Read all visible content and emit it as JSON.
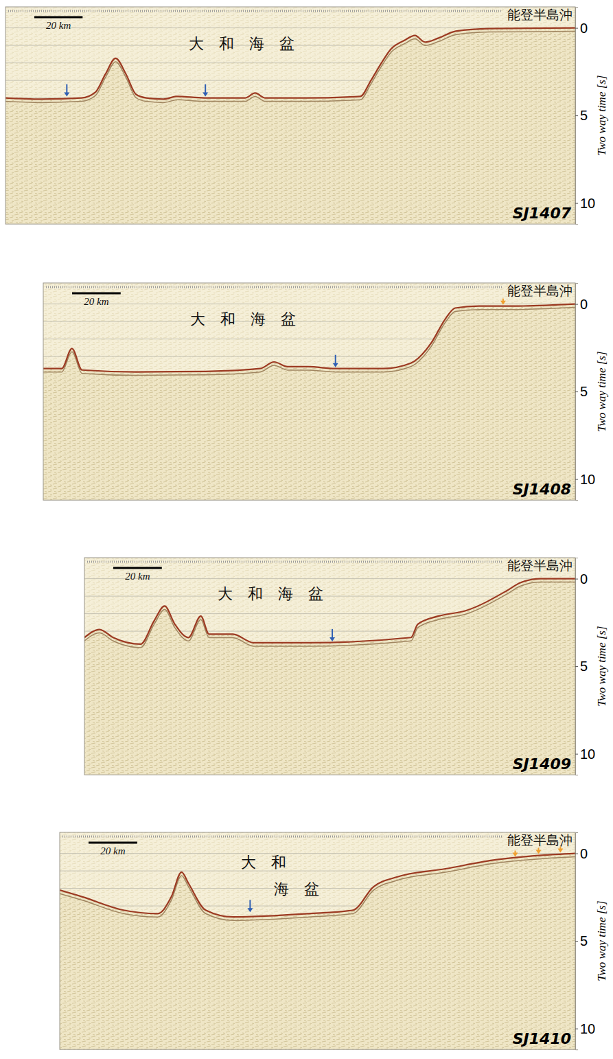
{
  "chart_data": [
    {
      "type": "line",
      "title": "SJ1407",
      "end_label": "能登半島沖",
      "ylabel": "Two way time [s]",
      "annotations": [
        {
          "text": "大　和　海　盆",
          "x": 97.7,
          "y": 0.97
        }
      ],
      "scale_bar": {
        "value": 20,
        "label": "20 km"
      },
      "x": [
        0,
        14.6,
        31.5,
        37.2,
        41.4,
        45.6,
        49.9,
        54.1,
        58.3,
        65.4,
        71,
        82.3,
        99.2,
        103.4,
        107.6,
        124.5,
        147,
        151.3,
        155.5,
        159.7,
        165.4,
        169.6,
        173.8,
        179.4,
        186.5,
        200.6,
        236
      ],
      "values": [
        4.0,
        4.07,
        4.0,
        3.68,
        2.64,
        1.74,
        2.64,
        3.8,
        4.0,
        4.07,
        3.91,
        4.0,
        4.0,
        3.72,
        4.0,
        4.0,
        3.91,
        3.02,
        2.05,
        1.2,
        0.7,
        0.43,
        0.81,
        0.58,
        0.19,
        0.04,
        0.0
      ],
      "color": "#9c3a22",
      "arrows": [
        {
          "x": 25.4,
          "y": 4.0,
          "color": "#2f5fb3"
        },
        {
          "x": 82.8,
          "y": 4.0,
          "color": "#2f5fb3"
        }
      ],
      "xlim": [
        0,
        236
      ],
      "ylim": [
        -1.2,
        11.2
      ],
      "yticks": [
        0,
        5,
        10
      ],
      "ygrid": [
        0,
        1,
        2,
        3,
        4,
        5,
        6,
        7,
        8,
        9,
        10,
        11
      ],
      "grid": true,
      "tick_labels": "y"
    },
    {
      "type": "line",
      "title": "SJ1408",
      "end_label": "能登半島沖",
      "ylabel": "Two way time [s]",
      "annotations": [
        {
          "text": "大　和　海　盆",
          "x": 82.3,
          "y": 0.92
        }
      ],
      "scale_bar": {
        "value": 20,
        "label": "20 km"
      },
      "x": [
        0,
        7.6,
        11.8,
        16,
        38.3,
        66.8,
        89.3,
        95,
        100.6,
        109,
        120.3,
        140,
        151.3,
        159.7,
        165.4,
        169.6,
        179.4,
        193.5,
        219
      ],
      "values": [
        3.69,
        3.69,
        2.54,
        3.77,
        3.88,
        3.85,
        3.69,
        3.31,
        3.58,
        3.58,
        3.69,
        3.69,
        3.38,
        2.23,
        0.88,
        0.23,
        0.12,
        0.12,
        0.0
      ],
      "color": "#9c3a22",
      "arrows": [
        {
          "x": 120.3,
          "y": 3.69,
          "color": "#2f5fb3"
        },
        {
          "x": 189.3,
          "y": 0.12,
          "color": "#f0a030"
        }
      ],
      "xlim": [
        0,
        219
      ],
      "ylim": [
        -1.2,
        11.2
      ],
      "yticks": [
        0,
        5,
        10
      ],
      "ygrid": [
        0,
        1,
        2,
        3,
        4,
        5,
        6,
        7,
        8,
        9,
        10,
        11
      ],
      "grid": true,
      "tick_labels": "y"
    },
    {
      "type": "line",
      "title": "SJ1409",
      "end_label": "能登半島沖",
      "ylabel": "Two way time [s]",
      "annotations": [
        {
          "text": "大　和　海　盆",
          "x": 76.6,
          "y": 0.92
        }
      ],
      "scale_bar": {
        "value": 20,
        "label": "20 km"
      },
      "x": [
        0,
        6.2,
        11.8,
        23.1,
        28.7,
        33,
        37.2,
        42.8,
        47.9,
        51.3,
        61.1,
        69.6,
        92.1,
        134.4,
        137.2,
        145.6,
        156.9,
        173.8,
        179.4,
        187.9,
        202
      ],
      "values": [
        3.36,
        2.9,
        3.36,
        3.74,
        2.4,
        1.56,
        2.6,
        3.36,
        2.14,
        3.17,
        3.17,
        3.66,
        3.66,
        3.36,
        2.6,
        2.14,
        1.83,
        0.69,
        0.23,
        0.0,
        0.0
      ],
      "color": "#9c3a22",
      "arrows": [
        {
          "x": 102,
          "y": 3.66,
          "color": "#2f5fb3"
        }
      ],
      "xlim": [
        0,
        202
      ],
      "ylim": [
        -1.2,
        11.2
      ],
      "yticks": [
        0,
        5,
        10
      ],
      "ygrid": [
        0,
        1,
        2,
        3,
        4,
        5,
        6,
        7,
        8,
        9,
        10,
        11
      ],
      "grid": true,
      "tick_labels": "y"
    },
    {
      "type": "line",
      "title": "SJ1410",
      "end_label": "能登半島沖",
      "ylabel": "Two way time [s]",
      "annotations": [
        {
          "text": "大　和",
          "x": 83.9,
          "y": 0.57
        },
        {
          "text": "海　盆",
          "x": 97.5,
          "y": 2.1
        }
      ],
      "scale_bar": {
        "value": 20,
        "label": "20 km"
      },
      "x": [
        0,
        9.3,
        26.2,
        40.3,
        45.9,
        50.1,
        53,
        60,
        71.3,
        102.3,
        120.6,
        129,
        138.9,
        158.6,
        178.3,
        198,
        212
      ],
      "values": [
        2.1,
        2.48,
        3.24,
        3.44,
        2.48,
        1.07,
        1.72,
        3.24,
        3.63,
        3.44,
        3.24,
        1.91,
        1.34,
        0.88,
        0.38,
        0.11,
        0.0
      ],
      "color": "#9c3a22",
      "arrows": [
        {
          "x": 78.3,
          "y": 3.44,
          "color": "#2f5fb3"
        },
        {
          "x": 187.3,
          "y": 0.27,
          "color": "#f0a030"
        },
        {
          "x": 196.9,
          "y": 0.11,
          "color": "#f0a030"
        },
        {
          "x": 205.9,
          "y": 0.04,
          "color": "#f0a030"
        }
      ],
      "xlim": [
        0,
        212
      ],
      "ylim": [
        -1.2,
        11.2
      ],
      "yticks": [
        0,
        5,
        10
      ],
      "ygrid": [
        0,
        1,
        2,
        3,
        4,
        5,
        6,
        7,
        8,
        9,
        10,
        11
      ],
      "grid": true,
      "tick_labels": "y"
    }
  ]
}
